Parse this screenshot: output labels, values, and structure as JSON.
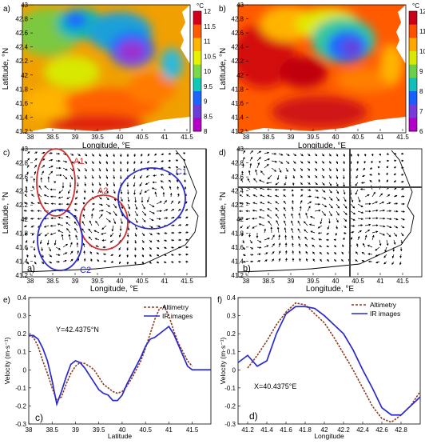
{
  "panels": {
    "a": {
      "letter": "a)",
      "xlabel": "Longitude, °E",
      "ylabel": "Latitude, °N",
      "xticks": [
        "38",
        "38.5",
        "39",
        "39.5",
        "40",
        "40.5",
        "41",
        "41.5"
      ],
      "yticks": [
        "43",
        "42.8",
        "42.6",
        "42.4",
        "42.2",
        "42",
        "41.8",
        "41.6",
        "41.4",
        "41.2"
      ],
      "colorbar": {
        "unit": "°C",
        "ticks": [
          "12",
          "11.5",
          "11",
          "10.5",
          "10",
          "9.5",
          "9",
          "8.5",
          "8"
        ],
        "colors": [
          "#d4001a",
          "#ff5a00",
          "#ffb400",
          "#e8f000",
          "#7ad84a",
          "#10c8b4",
          "#1a64ff",
          "#6a3cd8",
          "#b400c8"
        ]
      }
    },
    "b": {
      "letter": "b)",
      "xlabel": "Longitude, °E",
      "ylabel": "Latitude, °N",
      "xticks": [
        "38",
        "38.5",
        "39",
        "39.5",
        "40",
        "40.5",
        "41",
        "41.5"
      ],
      "yticks": [
        "43",
        "42.8",
        "42.6",
        "42.4",
        "42.2",
        "42",
        "41.8",
        "41.6",
        "41.4",
        "41.2"
      ],
      "colorbar": {
        "unit": "°C",
        "ticks": [
          "12",
          "11",
          "10",
          "9",
          "8",
          "7",
          "6"
        ],
        "colors": [
          "#c80018",
          "#ff5000",
          "#ffa800",
          "#d8e800",
          "#6ad04a",
          "#10c0b8",
          "#1a60ff",
          "#7a3cd8",
          "#b400c8"
        ]
      }
    },
    "c": {
      "letter": "c)",
      "inner_letter": "a)",
      "xlabel": "Longitude, °E",
      "ylabel": "Latitude, °N",
      "xticks": [
        "38",
        "38.5",
        "39",
        "39.5",
        "40",
        "40.5",
        "41",
        "41.5"
      ],
      "yticks": [
        "43",
        "42.8",
        "42.6",
        "42.4",
        "42.2",
        "42",
        "41.8",
        "41.6",
        "41.4",
        "41.2"
      ],
      "eddies": [
        {
          "label": "A1",
          "color": "#d03030"
        },
        {
          "label": "A2",
          "color": "#d03030"
        },
        {
          "label": "C1",
          "color": "#2a2ad0"
        },
        {
          "label": "C2",
          "color": "#2a2ad0"
        }
      ]
    },
    "d": {
      "letter": "d)",
      "inner_letter": "b)",
      "xlabel": "Longitude, °E",
      "ylabel": "Latitude, °N",
      "xticks": [
        "38",
        "38.5",
        "39",
        "39.5",
        "40",
        "40.5",
        "41",
        "41.5"
      ],
      "yticks": [
        "43",
        "42.8",
        "42.6",
        "42.4",
        "42.2",
        "42",
        "41.8",
        "41.6",
        "41.4",
        "41.2"
      ]
    },
    "e": {
      "letter": "e)",
      "inner_letter": "c)",
      "annotation": "Y=42.4375°N",
      "xlabel": "Latitude",
      "ylabel": "Velocity (m·s⁻¹)",
      "xticks": [
        "38",
        "38.5",
        "39",
        "39.5",
        "40",
        "40.5",
        "41",
        "41.5"
      ],
      "yticks": [
        "0.4",
        "0.3",
        "0.2",
        "0.1",
        "0",
        "-0.1",
        "-0.2",
        "-0.3"
      ]
    },
    "f": {
      "letter": "f)",
      "inner_letter": "d)",
      "annotation": "X=40.4375°E",
      "xlabel": "Longitude",
      "ylabel": "Velocity (m·s⁻¹)",
      "xticks": [
        "41.2",
        "41.4",
        "41.6",
        "41.8",
        "42",
        "42.2",
        "42.4",
        "42.6",
        "42.8"
      ],
      "yticks": [
        "0.4",
        "0.3",
        "0.2",
        "0.1",
        "0",
        "-0.1",
        "-0.2",
        "-0.3"
      ]
    }
  },
  "legend": {
    "altimetry": "Altimetry",
    "ir": "IR images"
  },
  "colors": {
    "altimetry": "#8b3a1e",
    "ir": "#2a2acc"
  },
  "chart_data": [
    {
      "type": "line",
      "panel": "e",
      "xlim": [
        38,
        41.9
      ],
      "ylim": [
        -0.3,
        0.4
      ],
      "series": [
        {
          "name": "Altimetry",
          "style": "dashed",
          "x": [
            38.0,
            38.1,
            38.2,
            38.3,
            38.4,
            38.5,
            38.6,
            38.7,
            38.8,
            38.9,
            39.0,
            39.1,
            39.2,
            39.3,
            39.4,
            39.5,
            39.6,
            39.7,
            39.8,
            39.9,
            40.0,
            40.1,
            40.2,
            40.3,
            40.4,
            40.5,
            40.6,
            40.7,
            40.8,
            40.9,
            41.0,
            41.1,
            41.2,
            41.3,
            41.4,
            41.5
          ],
          "y": [
            0.19,
            0.18,
            0.13,
            0.05,
            -0.02,
            -0.1,
            -0.17,
            -0.15,
            -0.08,
            -0.02,
            0.02,
            0.04,
            0.035,
            0.02,
            0.0,
            -0.04,
            -0.08,
            -0.1,
            -0.12,
            -0.13,
            -0.12,
            -0.09,
            -0.05,
            0.0,
            0.05,
            0.12,
            0.2,
            0.28,
            0.34,
            0.35,
            0.3,
            0.22,
            0.15,
            0.1,
            0.05,
            0.02
          ]
        },
        {
          "name": "IR images",
          "style": "solid",
          "x": [
            38.0,
            38.1,
            38.2,
            38.3,
            38.4,
            38.5,
            38.6,
            38.7,
            38.8,
            38.9,
            39.0,
            39.1,
            39.2,
            39.3,
            39.4,
            39.5,
            39.6,
            39.7,
            39.8,
            39.9,
            40.0,
            40.1,
            40.2,
            40.3,
            40.4,
            40.5,
            40.6,
            40.7,
            40.8,
            40.9,
            41.0,
            41.1,
            41.2,
            41.3,
            41.4,
            41.5,
            41.6,
            41.7,
            41.8,
            41.9
          ],
          "y": [
            0.19,
            0.19,
            0.17,
            0.12,
            0.05,
            -0.06,
            -0.19,
            -0.12,
            -0.04,
            0.03,
            0.05,
            0.04,
            0.01,
            -0.03,
            -0.07,
            -0.11,
            -0.13,
            -0.14,
            -0.17,
            -0.17,
            -0.14,
            -0.08,
            -0.03,
            0.02,
            0.07,
            0.13,
            0.17,
            0.18,
            0.2,
            0.22,
            0.24,
            0.2,
            0.14,
            0.08,
            0.02,
            0.0,
            0.0,
            0.0,
            0.0,
            0.0
          ]
        }
      ]
    },
    {
      "type": "line",
      "panel": "f",
      "xlim": [
        41.1,
        43.0
      ],
      "ylim": [
        -0.3,
        0.4
      ],
      "series": [
        {
          "name": "Altimetry",
          "style": "dashed",
          "x": [
            41.2,
            41.3,
            41.4,
            41.5,
            41.6,
            41.7,
            41.8,
            41.9,
            42.0,
            42.1,
            42.2,
            42.3,
            42.4,
            42.5,
            42.6,
            42.7,
            42.8,
            42.9,
            43.0
          ],
          "y": [
            0.01,
            0.08,
            0.16,
            0.25,
            0.32,
            0.37,
            0.36,
            0.31,
            0.26,
            0.18,
            0.09,
            0.0,
            -0.1,
            -0.2,
            -0.27,
            -0.29,
            -0.25,
            -0.2,
            -0.12
          ]
        },
        {
          "name": "IR images",
          "style": "solid",
          "x": [
            41.1,
            41.2,
            41.3,
            41.4,
            41.5,
            41.6,
            41.7,
            41.8,
            41.9,
            42.0,
            42.1,
            42.2,
            42.3,
            42.4,
            42.5,
            42.6,
            42.7,
            42.8,
            42.9,
            43.0
          ],
          "y": [
            0.04,
            0.08,
            0.02,
            0.05,
            0.2,
            0.31,
            0.35,
            0.35,
            0.34,
            0.3,
            0.25,
            0.2,
            0.11,
            0.0,
            -0.1,
            -0.21,
            -0.25,
            -0.25,
            -0.2,
            -0.15
          ]
        }
      ]
    }
  ]
}
